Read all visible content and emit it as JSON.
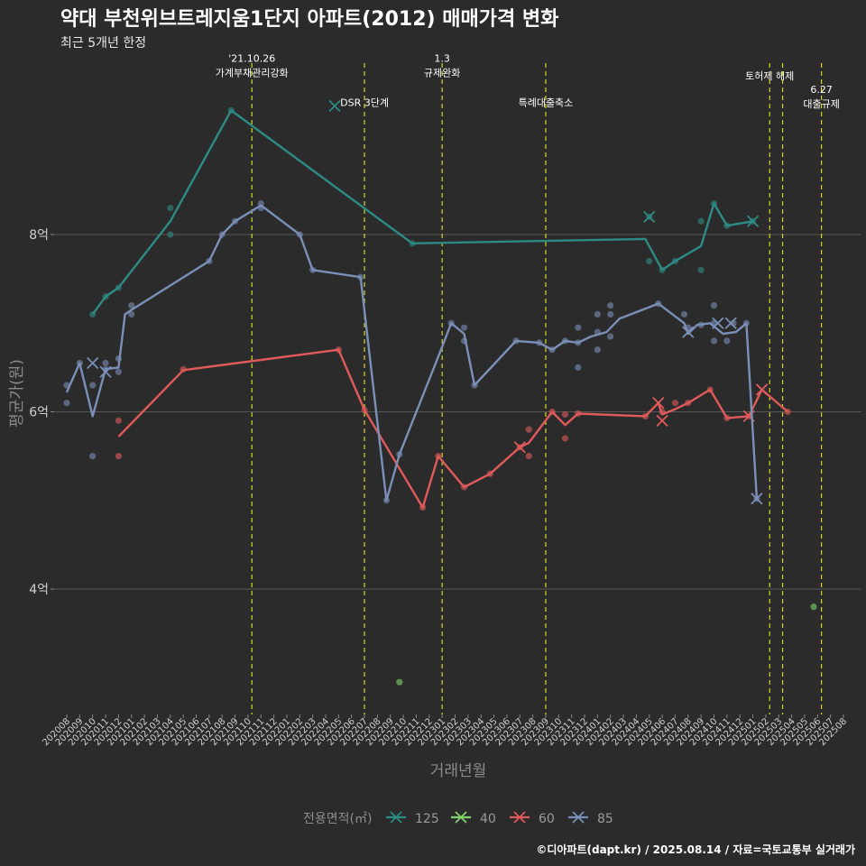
{
  "chart_data": {
    "type": "line",
    "title": "약대 부천위브트레지움1단지 아파트(2012) 매매가격 변화",
    "subtitle": "최근 5개년 한정",
    "xlabel": "거래년월",
    "ylabel": "평균가(원)",
    "ylim": [
      2.7,
      9.9
    ],
    "yticks": [
      {
        "value": 4,
        "label": "4억"
      },
      {
        "value": 6,
        "label": "6억"
      },
      {
        "value": 8,
        "label": "8억"
      }
    ],
    "grid": "horizontal",
    "legend_title": "전용면적(㎡)",
    "legend_position": "bottom",
    "caption": "©디아파트(dapt.kr) / 2025.08.14 / 자료=국토교통부 실거래가",
    "categories": [
      "202008",
      "202009",
      "202010",
      "202011",
      "202012",
      "202101",
      "202102",
      "202103",
      "202104",
      "202105",
      "202106",
      "202107",
      "202108",
      "202109",
      "202110",
      "202111",
      "202112",
      "202201",
      "202202",
      "202203",
      "202204",
      "202205",
      "202206",
      "202207",
      "202208",
      "202209",
      "202210",
      "202211",
      "202212",
      "202301",
      "202302",
      "202303",
      "202304",
      "202305",
      "202306",
      "202307",
      "202308",
      "202309",
      "202310",
      "202311",
      "202312",
      "202401",
      "202402",
      "202403",
      "202404",
      "202405",
      "202406",
      "202407",
      "202408",
      "202409",
      "202410",
      "202411",
      "202412",
      "202501",
      "202502",
      "202503",
      "202504",
      "202505",
      "202506",
      "202507",
      "202508"
    ],
    "series": [
      {
        "name": "125",
        "color": "#2e8b84",
        "line": [
          [
            2,
            7.1
          ],
          [
            3,
            7.3
          ],
          [
            4,
            7.4
          ],
          [
            8,
            8.15
          ],
          [
            12.7,
            9.4
          ],
          [
            26.7,
            7.9
          ],
          [
            44.7,
            7.95
          ],
          [
            46,
            7.6
          ],
          [
            47,
            7.7
          ],
          [
            49,
            7.87
          ],
          [
            50,
            8.35
          ],
          [
            51,
            8.1
          ],
          [
            53,
            8.15
          ]
        ],
        "points": [
          [
            2,
            7.1
          ],
          [
            3,
            7.3
          ],
          [
            4,
            7.4
          ],
          [
            8,
            8.3
          ],
          [
            8,
            8.0
          ],
          [
            12.7,
            9.4
          ],
          [
            26.7,
            7.9
          ],
          [
            45,
            8.2
          ],
          [
            45,
            7.7
          ],
          [
            46,
            7.6
          ],
          [
            47,
            7.7
          ],
          [
            49,
            8.15
          ],
          [
            49,
            7.6
          ],
          [
            50,
            8.35
          ],
          [
            51,
            8.1
          ],
          [
            53,
            8.15
          ]
        ],
        "crosses": [
          [
            20.7,
            9.45
          ],
          [
            45,
            8.2
          ],
          [
            53,
            8.15
          ]
        ]
      },
      {
        "name": "40",
        "color": "#7fd36b",
        "line": [],
        "points": [
          [
            25.7,
            2.95
          ],
          [
            57.7,
            3.8
          ]
        ],
        "crosses": []
      },
      {
        "name": "60",
        "color": "#e05a5a",
        "line": [
          [
            4,
            5.72
          ],
          [
            9,
            6.47
          ],
          [
            21,
            6.7
          ],
          [
            23,
            6.02
          ],
          [
            27.5,
            4.92
          ],
          [
            28.7,
            5.5
          ],
          [
            30.7,
            5.15
          ],
          [
            32.7,
            5.3
          ],
          [
            35,
            5.6
          ],
          [
            35.7,
            5.65
          ],
          [
            37.5,
            6.0
          ],
          [
            38.5,
            5.85
          ],
          [
            39.5,
            5.98
          ],
          [
            44.7,
            5.95
          ],
          [
            45.7,
            6.1
          ],
          [
            46,
            5.97
          ],
          [
            47,
            6.03
          ],
          [
            48,
            6.1
          ],
          [
            49.7,
            6.25
          ],
          [
            51,
            5.93
          ],
          [
            52.7,
            5.95
          ],
          [
            53.7,
            6.25
          ],
          [
            55.7,
            6.0
          ]
        ],
        "points": [
          [
            4,
            5.9
          ],
          [
            4,
            5.5
          ],
          [
            9,
            6.48
          ],
          [
            21,
            6.7
          ],
          [
            23,
            6.02
          ],
          [
            27.5,
            4.92
          ],
          [
            28.7,
            5.5
          ],
          [
            30.7,
            5.15
          ],
          [
            32.7,
            5.3
          ],
          [
            35,
            5.6
          ],
          [
            35.7,
            5.5
          ],
          [
            35.7,
            5.8
          ],
          [
            37.5,
            6.0
          ],
          [
            38.5,
            5.97
          ],
          [
            38.5,
            5.7
          ],
          [
            39.5,
            5.98
          ],
          [
            44.7,
            5.95
          ],
          [
            46,
            6.0
          ],
          [
            47,
            6.1
          ],
          [
            48,
            6.1
          ],
          [
            49.7,
            6.25
          ],
          [
            51,
            5.93
          ],
          [
            52.7,
            5.95
          ],
          [
            55.7,
            6.0
          ]
        ],
        "crosses": [
          [
            35,
            5.6
          ],
          [
            45.7,
            6.1
          ],
          [
            46,
            5.9
          ],
          [
            52.7,
            5.95
          ],
          [
            53.7,
            6.25
          ]
        ]
      },
      {
        "name": "85",
        "color": "#7b90b8",
        "line": [
          [
            0,
            6.22
          ],
          [
            1,
            6.55
          ],
          [
            2,
            5.95
          ],
          [
            3,
            6.48
          ],
          [
            4,
            6.5
          ],
          [
            4.5,
            7.1
          ],
          [
            5,
            7.15
          ],
          [
            11,
            7.7
          ],
          [
            12,
            8.0
          ],
          [
            13,
            8.15
          ],
          [
            15,
            8.33
          ],
          [
            18,
            8.0
          ],
          [
            19,
            7.6
          ],
          [
            22.7,
            7.52
          ],
          [
            24.7,
            5.0
          ],
          [
            25.7,
            5.52
          ],
          [
            28.7,
            6.62
          ],
          [
            29.7,
            7.0
          ],
          [
            30.7,
            6.88
          ],
          [
            31.5,
            6.3
          ],
          [
            34.7,
            6.8
          ],
          [
            36.5,
            6.78
          ],
          [
            37.5,
            6.7
          ],
          [
            38.5,
            6.8
          ],
          [
            39.5,
            6.78
          ],
          [
            40.5,
            6.85
          ],
          [
            41.7,
            6.9
          ],
          [
            42.7,
            7.05
          ],
          [
            45.7,
            7.22
          ],
          [
            47.7,
            7.0
          ],
          [
            48,
            6.88
          ],
          [
            48.7,
            6.98
          ],
          [
            49.7,
            7.0
          ],
          [
            50.7,
            6.88
          ],
          [
            51.7,
            6.9
          ],
          [
            52.5,
            7.0
          ],
          [
            53.3,
            5.02
          ]
        ],
        "points": [
          [
            0,
            6.3
          ],
          [
            0,
            6.1
          ],
          [
            1,
            6.55
          ],
          [
            2,
            6.3
          ],
          [
            2,
            5.5
          ],
          [
            3,
            6.55
          ],
          [
            3,
            6.48
          ],
          [
            4,
            6.6
          ],
          [
            4,
            6.45
          ],
          [
            5,
            7.2
          ],
          [
            5,
            7.1
          ],
          [
            11,
            7.7
          ],
          [
            12,
            8.0
          ],
          [
            13,
            8.15
          ],
          [
            15,
            8.35
          ],
          [
            15,
            8.3
          ],
          [
            18,
            8.0
          ],
          [
            19,
            7.6
          ],
          [
            22.7,
            7.52
          ],
          [
            24.7,
            5.0
          ],
          [
            25.7,
            5.52
          ],
          [
            29.7,
            7.0
          ],
          [
            30.7,
            6.95
          ],
          [
            30.7,
            6.8
          ],
          [
            31.5,
            6.3
          ],
          [
            34.7,
            6.8
          ],
          [
            36.5,
            6.78
          ],
          [
            37.5,
            6.7
          ],
          [
            38.5,
            6.8
          ],
          [
            39.5,
            6.78
          ],
          [
            39.5,
            6.95
          ],
          [
            39.5,
            6.5
          ],
          [
            41,
            7.1
          ],
          [
            41,
            6.9
          ],
          [
            41,
            6.7
          ],
          [
            42,
            7.2
          ],
          [
            42,
            7.1
          ],
          [
            42,
            6.85
          ],
          [
            45.7,
            7.22
          ],
          [
            47.7,
            7.1
          ],
          [
            48,
            6.95
          ],
          [
            49,
            6.98
          ],
          [
            50,
            7.0
          ],
          [
            50,
            7.2
          ],
          [
            50,
            6.8
          ],
          [
            51,
            6.8
          ],
          [
            51.5,
            7.0
          ],
          [
            52.5,
            7.0
          ],
          [
            53.3,
            5.02
          ]
        ],
        "crosses": [
          [
            2,
            6.55
          ],
          [
            3,
            6.45
          ],
          [
            48,
            6.9
          ],
          [
            50.3,
            7.0
          ],
          [
            51.3,
            7.0
          ],
          [
            53.3,
            5.02
          ]
        ]
      }
    ],
    "events": [
      {
        "x": 14.3,
        "label": "'21.10.26\n가계부채관리강화",
        "label_y": 9.95
      },
      {
        "x": 23.0,
        "label": "DSR 3단계",
        "label_y": 9.45
      },
      {
        "x": 29.0,
        "label": "1.3\n규제완화",
        "label_y": 9.95
      },
      {
        "x": 37.0,
        "label": "특례대출축소",
        "label_y": 9.45
      },
      {
        "x": 54.3,
        "label": "토허제 해제",
        "label_y": 9.75
      },
      {
        "x": 55.3,
        "label": "",
        "label_y": 9.75
      },
      {
        "x": 58.3,
        "label": "6.27\n대출규제",
        "label_y": 9.6
      }
    ]
  }
}
